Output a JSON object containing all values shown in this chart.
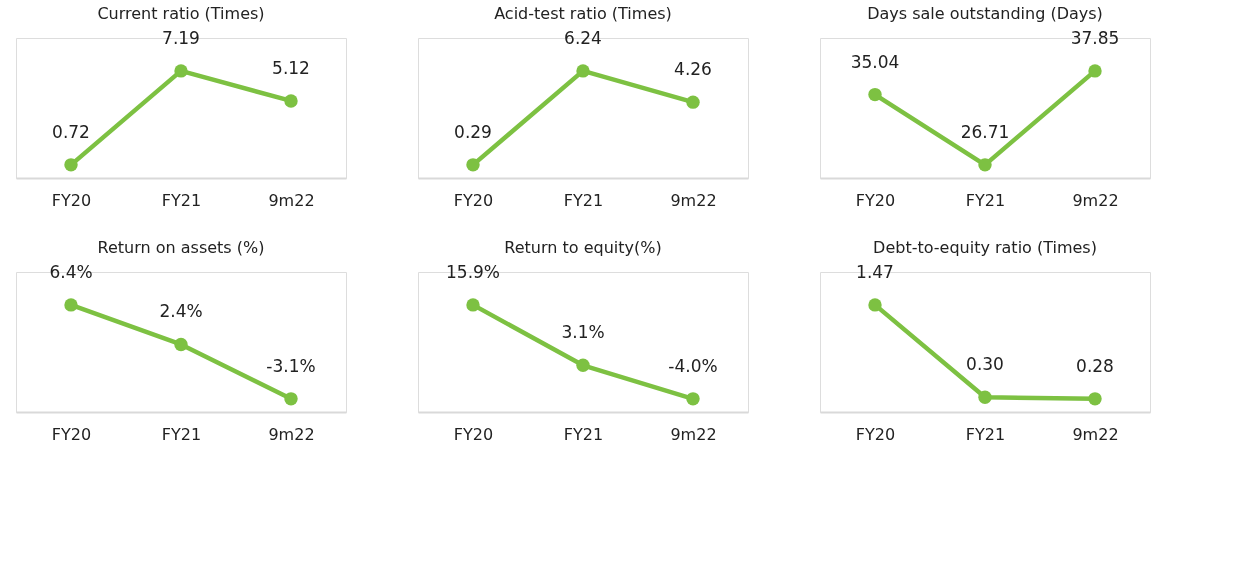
{
  "chart_data": [
    {
      "type": "line",
      "title": "Current ratio (Times)",
      "categories": [
        "FY20",
        "FY21",
        "9m22"
      ],
      "series": [
        {
          "color": "#7dc142",
          "values": [
            0.72,
            7.19,
            5.12
          ],
          "value_labels": [
            "0.72",
            "7.19",
            "5.12"
          ]
        }
      ],
      "marker": "circle",
      "grid": false,
      "tick_labels": "x"
    },
    {
      "type": "line",
      "title": "Acid-test ratio (Times)",
      "categories": [
        "FY20",
        "FY21",
        "9m22"
      ],
      "series": [
        {
          "color": "#7dc142",
          "values": [
            0.29,
            6.24,
            4.26
          ],
          "value_labels": [
            "0.29",
            "6.24",
            "4.26"
          ]
        }
      ],
      "marker": "circle",
      "grid": false,
      "tick_labels": "x"
    },
    {
      "type": "line",
      "title": "Days sale outstanding (Days)",
      "categories": [
        "FY20",
        "FY21",
        "9m22"
      ],
      "series": [
        {
          "color": "#7dc142",
          "values": [
            35.04,
            26.71,
            37.85
          ],
          "value_labels": [
            "35.04",
            "26.71",
            "37.85"
          ]
        }
      ],
      "marker": "circle",
      "grid": false,
      "tick_labels": "x"
    },
    {
      "type": "line",
      "title": "Return on assets (%)",
      "categories": [
        "FY20",
        "FY21",
        "9m22"
      ],
      "series": [
        {
          "color": "#7dc142",
          "values": [
            6.4,
            2.4,
            -3.1
          ],
          "value_labels": [
            "6.4%",
            "2.4%",
            "-3.1%"
          ]
        }
      ],
      "marker": "circle",
      "grid": false,
      "tick_labels": "x"
    },
    {
      "type": "line",
      "title": "Return to equity(%)",
      "categories": [
        "FY20",
        "FY21",
        "9m22"
      ],
      "series": [
        {
          "color": "#7dc142",
          "values": [
            15.9,
            3.1,
            -4.0
          ],
          "value_labels": [
            "15.9%",
            "3.1%",
            "-4.0%"
          ]
        }
      ],
      "marker": "circle",
      "grid": false,
      "tick_labels": "x"
    },
    {
      "type": "line",
      "title": "Debt-to-equity ratio (Times)",
      "categories": [
        "FY20",
        "FY21",
        "9m22"
      ],
      "series": [
        {
          "color": "#7dc142",
          "values": [
            1.47,
            0.3,
            0.28
          ],
          "value_labels": [
            "1.47",
            "0.30",
            "0.28"
          ]
        }
      ],
      "marker": "circle",
      "grid": false,
      "tick_labels": "x"
    }
  ]
}
